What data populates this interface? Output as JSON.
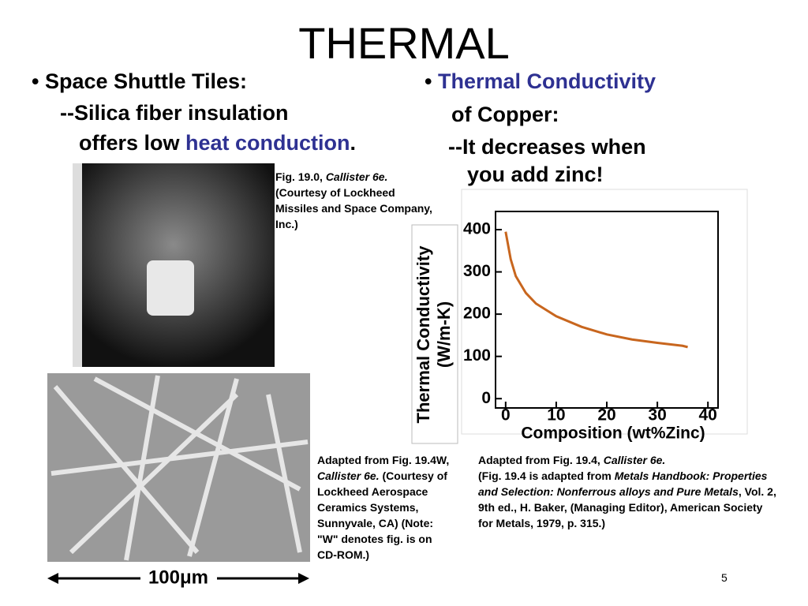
{
  "title": "THERMAL",
  "left": {
    "bullet": "Space Shuttle Tiles:",
    "line1": "--Silica fiber insulation",
    "line2_pre": "offers low ",
    "line2_highlight": "heat conduction",
    "line2_post": "."
  },
  "right": {
    "bullet_highlight": "Thermal Conductivity",
    "bullet_rest": "of Copper:",
    "line1": "--It decreases when",
    "line2": "you add zinc!"
  },
  "caption_photo": {
    "pre": "Fig. 19.0, ",
    "italic": "Callister 6e.",
    "post": "(Courtesy of Lockheed Missiles and Space Company, Inc.)"
  },
  "caption_sem": {
    "pre": "Adapted from Fig. 19.4W, ",
    "italic": "Callister 6e.",
    "post": " (Courtesy of Lockheed Aerospace Ceramics Systems, Sunnyvale, CA) (Note: \"W\" denotes fig. is on CD-ROM.)"
  },
  "scale_bar": "100μm",
  "caption_chart": {
    "pre": "Adapted from Fig. 19.4, ",
    "italic1": "Callister 6e.",
    "mid": "(Fig. 19.4 is adapted from ",
    "italic2": "Metals Handbook: Properties and Selection: Nonferrous alloys and Pure Metals",
    "post": ", Vol. 2, 9th ed., H. Baker, (Managing Editor), American Society for Metals, 1979, p. 315.)"
  },
  "figure": {
    "y_label_line1": "Thermal Conductivity",
    "y_label_line2": "(W/m-K)",
    "x_label": "Composition (wt%Zinc)",
    "xlim": [
      -2,
      42
    ],
    "ylim": [
      -22,
      443
    ],
    "xticks": [
      0,
      10,
      20,
      30,
      40
    ],
    "yticks": [
      0,
      100,
      200,
      300,
      400
    ],
    "color": "#c8661e",
    "curve": {
      "x": [
        0,
        1,
        2,
        4,
        6,
        10,
        15,
        20,
        25,
        30,
        35,
        36
      ],
      "y": [
        395,
        330,
        290,
        250,
        225,
        195,
        170,
        152,
        140,
        132,
        125,
        122
      ]
    }
  },
  "page_number": "5"
}
